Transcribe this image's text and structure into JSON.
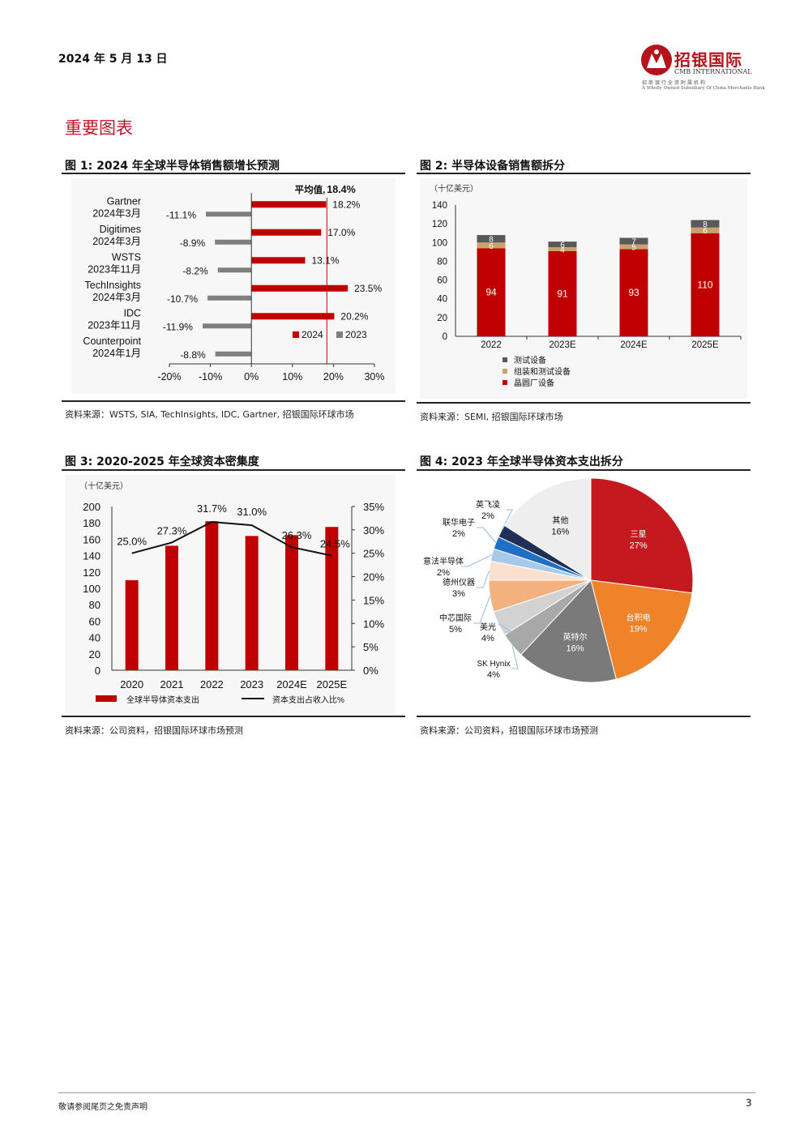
{
  "header": {
    "date": "2024 年 5 月 13 日",
    "logo_name": "招银国际",
    "logo_en": "CMB INTERNATIONAL",
    "logo_sub1": "招商银行全资附属机构",
    "logo_sub2": "A Wholly Owned Subsidiary Of China Merchants Bank"
  },
  "section_title": "重要图表",
  "figures": {
    "fig1": {
      "title": "图 1: 2024 年全球半导体销售额增长预测",
      "source": "资料来源：WSTS, SIA, TechInsights, IDC, Gartner, 招银国际环球市场"
    },
    "fig2": {
      "title": "图 2: 半导体设备销售额拆分",
      "source": "资料来源：SEMI, 招银国际环球市场"
    },
    "fig3": {
      "title": "图 3: 2020-2025 年全球资本密集度",
      "source": "资料来源：公司资料，招银国际环球市场预测"
    },
    "fig4": {
      "title": "图 4: 2023 年全球半导体资本支出拆分",
      "source": "资料来源：公司资料，招银国际环球市场预测"
    }
  },
  "footer": {
    "disclaimer": "敬请参阅尾页之免责声明",
    "page": "3"
  },
  "colors": {
    "red": "#c00000",
    "gray": "#7f7f7f",
    "dark": "#595959",
    "gold": "#c9a46a",
    "brand": "#b5121b"
  },
  "chart_data": [
    {
      "type": "bar",
      "orientation": "horizontal",
      "categories": [
        [
          "Gartner",
          "2024年3月"
        ],
        [
          "Digitimes",
          "2024年3月"
        ],
        [
          "WSTS",
          "2023年11月"
        ],
        [
          "TechInsights",
          "2024年3月"
        ],
        [
          "IDC",
          "2023年11月"
        ],
        [
          "Counterpoint",
          "2024年1月"
        ]
      ],
      "series": [
        {
          "name": "2024",
          "color": "#c00000",
          "values": [
            18.2,
            17.0,
            13.1,
            23.5,
            20.2,
            null
          ],
          "labels": [
            "18.2%",
            "17.0%",
            "13.1%",
            "23.5%",
            "20.2%",
            ""
          ]
        },
        {
          "name": "2023",
          "color": "#7f7f7f",
          "values": [
            -11.1,
            -8.9,
            -8.2,
            -10.7,
            -11.9,
            -8.8
          ],
          "labels": [
            "-11.1%",
            "-8.9%",
            "-8.2%",
            "-10.7%",
            "-11.9%",
            "-8.8%"
          ]
        }
      ],
      "annotation": {
        "label": "平均值,",
        "value_label": "18.4%",
        "value": 18.4
      },
      "xlim": [
        -20,
        30
      ],
      "xticks": [
        "-20%",
        "-10%",
        "0%",
        "10%",
        "20%",
        "30%"
      ],
      "legend": "bottom-right"
    },
    {
      "type": "bar",
      "stacked": true,
      "unit": "（十亿美元）",
      "categories": [
        "2022",
        "2023E",
        "2024E",
        "2025E"
      ],
      "series": [
        {
          "name": "晶圆厂设备",
          "color": "#c00000",
          "values": [
            94,
            91,
            93,
            110
          ]
        },
        {
          "name": "组装和测试设备",
          "color": "#c9a46a",
          "values": [
            6,
            4,
            5,
            6
          ]
        },
        {
          "name": "测试设备",
          "color": "#595959",
          "values": [
            8,
            6,
            7,
            8
          ]
        }
      ],
      "ylim": [
        0,
        140
      ],
      "yticks": [
        "0",
        "20",
        "40",
        "60",
        "80",
        "100",
        "120",
        "140"
      ],
      "legend": "bottom-left"
    },
    {
      "type": "bar-line",
      "unit": "（十亿美元）",
      "categories": [
        "2020",
        "2021",
        "2022",
        "2023",
        "2024E",
        "2025E"
      ],
      "bars": {
        "name": "全球半导体资本支出",
        "color": "#c00000",
        "values": [
          110,
          152,
          182,
          164,
          165,
          175
        ]
      },
      "line": {
        "name": "资本支出占收入比%",
        "color": "#111111",
        "values": [
          25.0,
          27.3,
          31.7,
          31.0,
          26.3,
          24.5
        ],
        "labels": [
          "25.0%",
          "27.3%",
          "31.7%",
          "31.0%",
          "26.3%",
          "24.5%"
        ]
      },
      "ylim_left": [
        0,
        200
      ],
      "yticks_left": [
        "0",
        "20",
        "40",
        "60",
        "80",
        "100",
        "120",
        "140",
        "160",
        "180",
        "200"
      ],
      "ylim_right": [
        0,
        35
      ],
      "yticks_right": [
        "0%",
        "5%",
        "10%",
        "15%",
        "20%",
        "25%",
        "30%",
        "35%"
      ],
      "legend": "bottom"
    },
    {
      "type": "pie",
      "slices": [
        {
          "label": "三星",
          "value": 27,
          "pct": "27%",
          "color": "#c41a1f"
        },
        {
          "label": "台积电",
          "value": 19,
          "pct": "19%",
          "color": "#ee8329"
        },
        {
          "label": "英特尔",
          "value": 16,
          "pct": "16%",
          "color": "#7a7a7a"
        },
        {
          "label": "SK Hynix",
          "value": 4,
          "pct": "4%",
          "color": "#a8a8a8"
        },
        {
          "label": "美光",
          "value": 4,
          "pct": "4%",
          "color": "#d2d2d2"
        },
        {
          "label": "中芯国际",
          "value": 5,
          "pct": "5%",
          "color": "#f3b17f"
        },
        {
          "label": "德州仪器",
          "value": 3,
          "pct": "3%",
          "color": "#fbe0cd"
        },
        {
          "label": "意法半导体",
          "value": 2,
          "pct": "2%",
          "color": "#a9c9eb"
        },
        {
          "label": "联华电子",
          "value": 2,
          "pct": "2%",
          "color": "#1f6fc4"
        },
        {
          "label": "英飞凌",
          "value": 2,
          "pct": "2%",
          "color": "#1f2f55"
        },
        {
          "label": "其他",
          "value": 16,
          "pct": "16%",
          "color": "#eeeeee"
        }
      ]
    }
  ]
}
